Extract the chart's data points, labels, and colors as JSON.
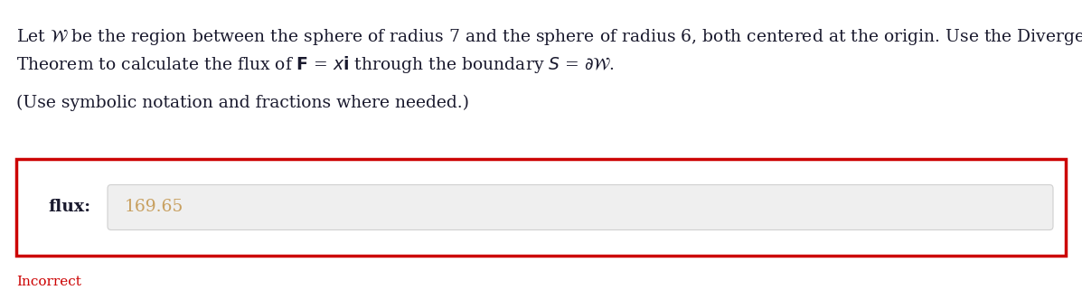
{
  "text_line1": "Let $\\mathcal{W}$ be the region between the sphere of radius 7 and the sphere of radius 6, both centered at the origin. Use the Divergence",
  "text_line2": "Theorem to calculate the flux of $\\mathbf{F}$ = $x\\mathbf{i}$ through the boundary $S$ = $\\partial\\mathcal{W}$.",
  "text_line3": "(Use symbolic notation and fractions where needed.)",
  "flux_label": "flux:",
  "flux_value": "169.65",
  "incorrect_text": "Incorrect",
  "bg_color": "#ffffff",
  "box_border_color": "#cc0000",
  "input_bg_color": "#efefef",
  "input_border_color": "#d0d0d0",
  "flux_value_color": "#c8a060",
  "incorrect_color": "#cc0000",
  "text_color": "#1a1a2e",
  "font_size_main": 13.5
}
